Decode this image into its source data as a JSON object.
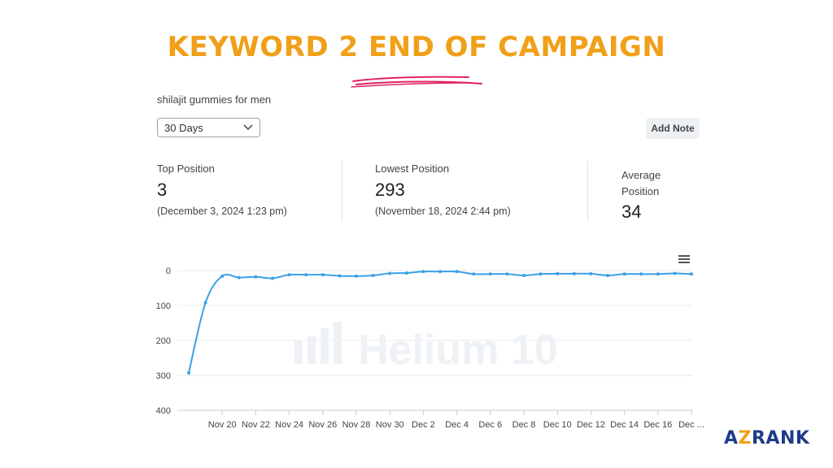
{
  "heading": "KEYWORD 2 END OF CAMPAIGN",
  "keyword": "shilajit gummies for men",
  "range_select": {
    "value": "30 Days"
  },
  "add_note_label": "Add Note",
  "stats": {
    "top": {
      "label": "Top Position",
      "value": "3",
      "sub": "(December 3, 2024 1:23 pm)"
    },
    "lowest": {
      "label": "Lowest Position",
      "value": "293",
      "sub": "(November 18, 2024 2:44 pm)"
    },
    "average": {
      "label_line1": "Average",
      "label_line2": "Position",
      "value": "34"
    }
  },
  "watermark": "Helium 10",
  "logo": {
    "part1": "AZ",
    "part2": "RANK",
    "colors": {
      "a": "#1e3a8a",
      "z": "#f0a018",
      "rank": "#1e3a8a"
    }
  },
  "colors": {
    "accent": "#f0a018",
    "line": "#3aa0e6",
    "scribble": "#e0245e"
  },
  "icons": {
    "menu": "hamburger-menu-icon",
    "dropdown": "chevron-down-icon"
  },
  "chart_data": {
    "type": "line",
    "y_inverted": true,
    "ylim": [
      0,
      400
    ],
    "y_ticks": [
      0,
      100,
      200,
      300,
      400
    ],
    "x_tick_labels": [
      "Nov 20",
      "Nov 22",
      "Nov 24",
      "Nov 26",
      "Nov 28",
      "Nov 30",
      "Dec 2",
      "Dec 4",
      "Dec 6",
      "Dec 8",
      "Dec 10",
      "Dec 12",
      "Dec 14",
      "Dec 16",
      "Dec ..."
    ],
    "x_start": "Nov 18",
    "x_end": "Dec 18",
    "grid": true,
    "series": [
      {
        "x": [
          "Nov 18",
          "Nov 19",
          "Nov 20",
          "Nov 21",
          "Nov 22",
          "Nov 23",
          "Nov 24",
          "Nov 25",
          "Nov 26",
          "Nov 27",
          "Nov 28",
          "Nov 29",
          "Nov 30",
          "Dec 1",
          "Dec 2",
          "Dec 3",
          "Dec 4",
          "Dec 5",
          "Dec 6",
          "Dec 7",
          "Dec 8",
          "Dec 9",
          "Dec 10",
          "Dec 11",
          "Dec 12",
          "Dec 13",
          "Dec 14",
          "Dec 15",
          "Dec 16",
          "Dec 17",
          "Dec 18"
        ],
        "values": [
          293,
          92,
          16,
          20,
          18,
          22,
          12,
          12,
          12,
          15,
          16,
          14,
          8,
          7,
          3,
          3,
          3,
          10,
          10,
          10,
          14,
          10,
          9,
          9,
          9,
          14,
          10,
          10,
          10,
          8,
          10
        ]
      }
    ]
  }
}
